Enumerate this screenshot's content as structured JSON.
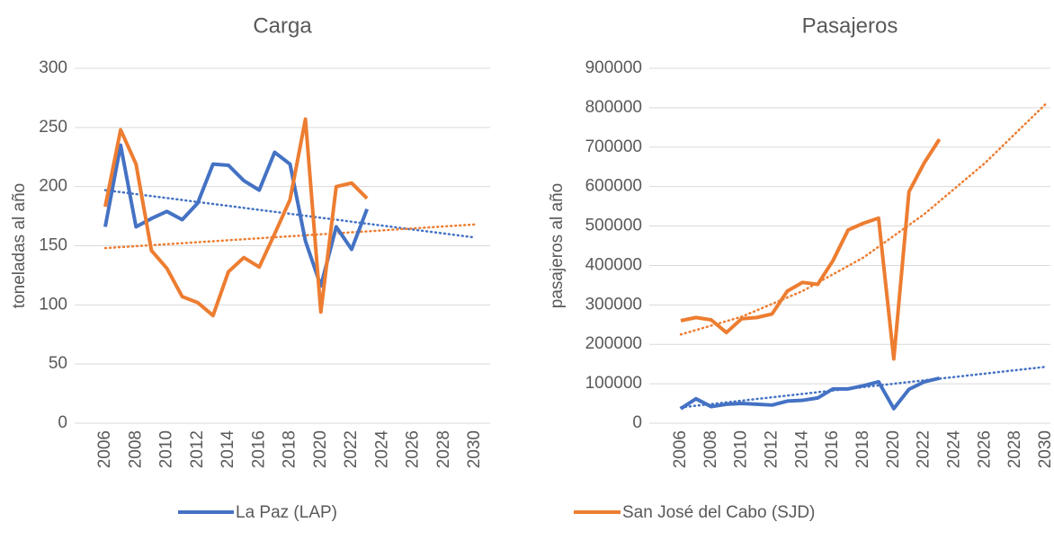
{
  "chart_data": [
    {
      "type": "line",
      "title": "Carga",
      "y_label": "toneladas al año",
      "x": [
        2006,
        2007,
        2008,
        2009,
        2010,
        2011,
        2012,
        2013,
        2014,
        2015,
        2016,
        2017,
        2018,
        2019,
        2020,
        2021,
        2022,
        2023
      ],
      "series": [
        {
          "name": "La Paz (LAP)",
          "color": "#4472c4",
          "values": [
            166,
            235,
            166,
            173,
            179,
            172,
            186,
            219,
            218,
            205,
            197,
            229,
            219,
            154,
            116,
            166,
            147,
            181
          ]
        },
        {
          "name": "San José del Cabo (SJD)",
          "color": "#ed7d31",
          "values": [
            183,
            248,
            219,
            146,
            131,
            107,
            102,
            91,
            128,
            140,
            132,
            160,
            189,
            257,
            94,
            200,
            203,
            190
          ]
        }
      ],
      "trendlines": [
        {
          "color": "#4472c4",
          "x": [
            2006,
            2030
          ],
          "values": [
            197,
            157
          ]
        },
        {
          "color": "#ed7d31",
          "x": [
            2006,
            2030
          ],
          "values": [
            148,
            168
          ]
        }
      ],
      "xlim": [
        2006,
        2030
      ],
      "xticks": [
        2006,
        2008,
        2010,
        2012,
        2014,
        2016,
        2018,
        2020,
        2022,
        2024,
        2026,
        2028,
        2030
      ],
      "ylim": [
        0,
        300
      ],
      "yticks": [
        0,
        50,
        100,
        150,
        200,
        250,
        300
      ],
      "grid": true
    },
    {
      "type": "line",
      "title": "Pasajeros",
      "y_label": "pasajeros al año",
      "x": [
        2006,
        2007,
        2008,
        2009,
        2010,
        2011,
        2012,
        2013,
        2014,
        2015,
        2016,
        2017,
        2018,
        2019,
        2020,
        2021,
        2022,
        2023
      ],
      "series": [
        {
          "color": "#4472c4",
          "values": [
            37000,
            62000,
            42000,
            48000,
            50000,
            48000,
            46000,
            56000,
            58000,
            64000,
            87000,
            87000,
            95000,
            105000,
            37000,
            86000,
            105000,
            114000
          ]
        },
        {
          "color": "#ed7d31",
          "values": [
            260000,
            268000,
            262000,
            230000,
            265000,
            268000,
            277000,
            335000,
            357000,
            352000,
            412000,
            490000,
            507000,
            520000,
            163000,
            587000,
            660000,
            720000
          ]
        }
      ],
      "trendlines": [
        {
          "color": "#4472c4",
          "x": [
            2006,
            2030
          ],
          "values": [
            40000,
            143000
          ]
        },
        {
          "color": "#ed7d31",
          "x": [
            2006,
            2010,
            2014,
            2018,
            2022,
            2026,
            2030
          ],
          "values": [
            225000,
            270000,
            335000,
            420000,
            530000,
            660000,
            810000
          ]
        }
      ],
      "xlim": [
        2006,
        2030
      ],
      "xticks": [
        2006,
        2008,
        2010,
        2012,
        2014,
        2016,
        2018,
        2020,
        2022,
        2024,
        2026,
        2028,
        2030
      ],
      "ylim": [
        0,
        900000
      ],
      "yticks": [
        0,
        100000,
        200000,
        300000,
        400000,
        500000,
        600000,
        700000,
        800000,
        900000
      ],
      "grid": true
    }
  ]
}
